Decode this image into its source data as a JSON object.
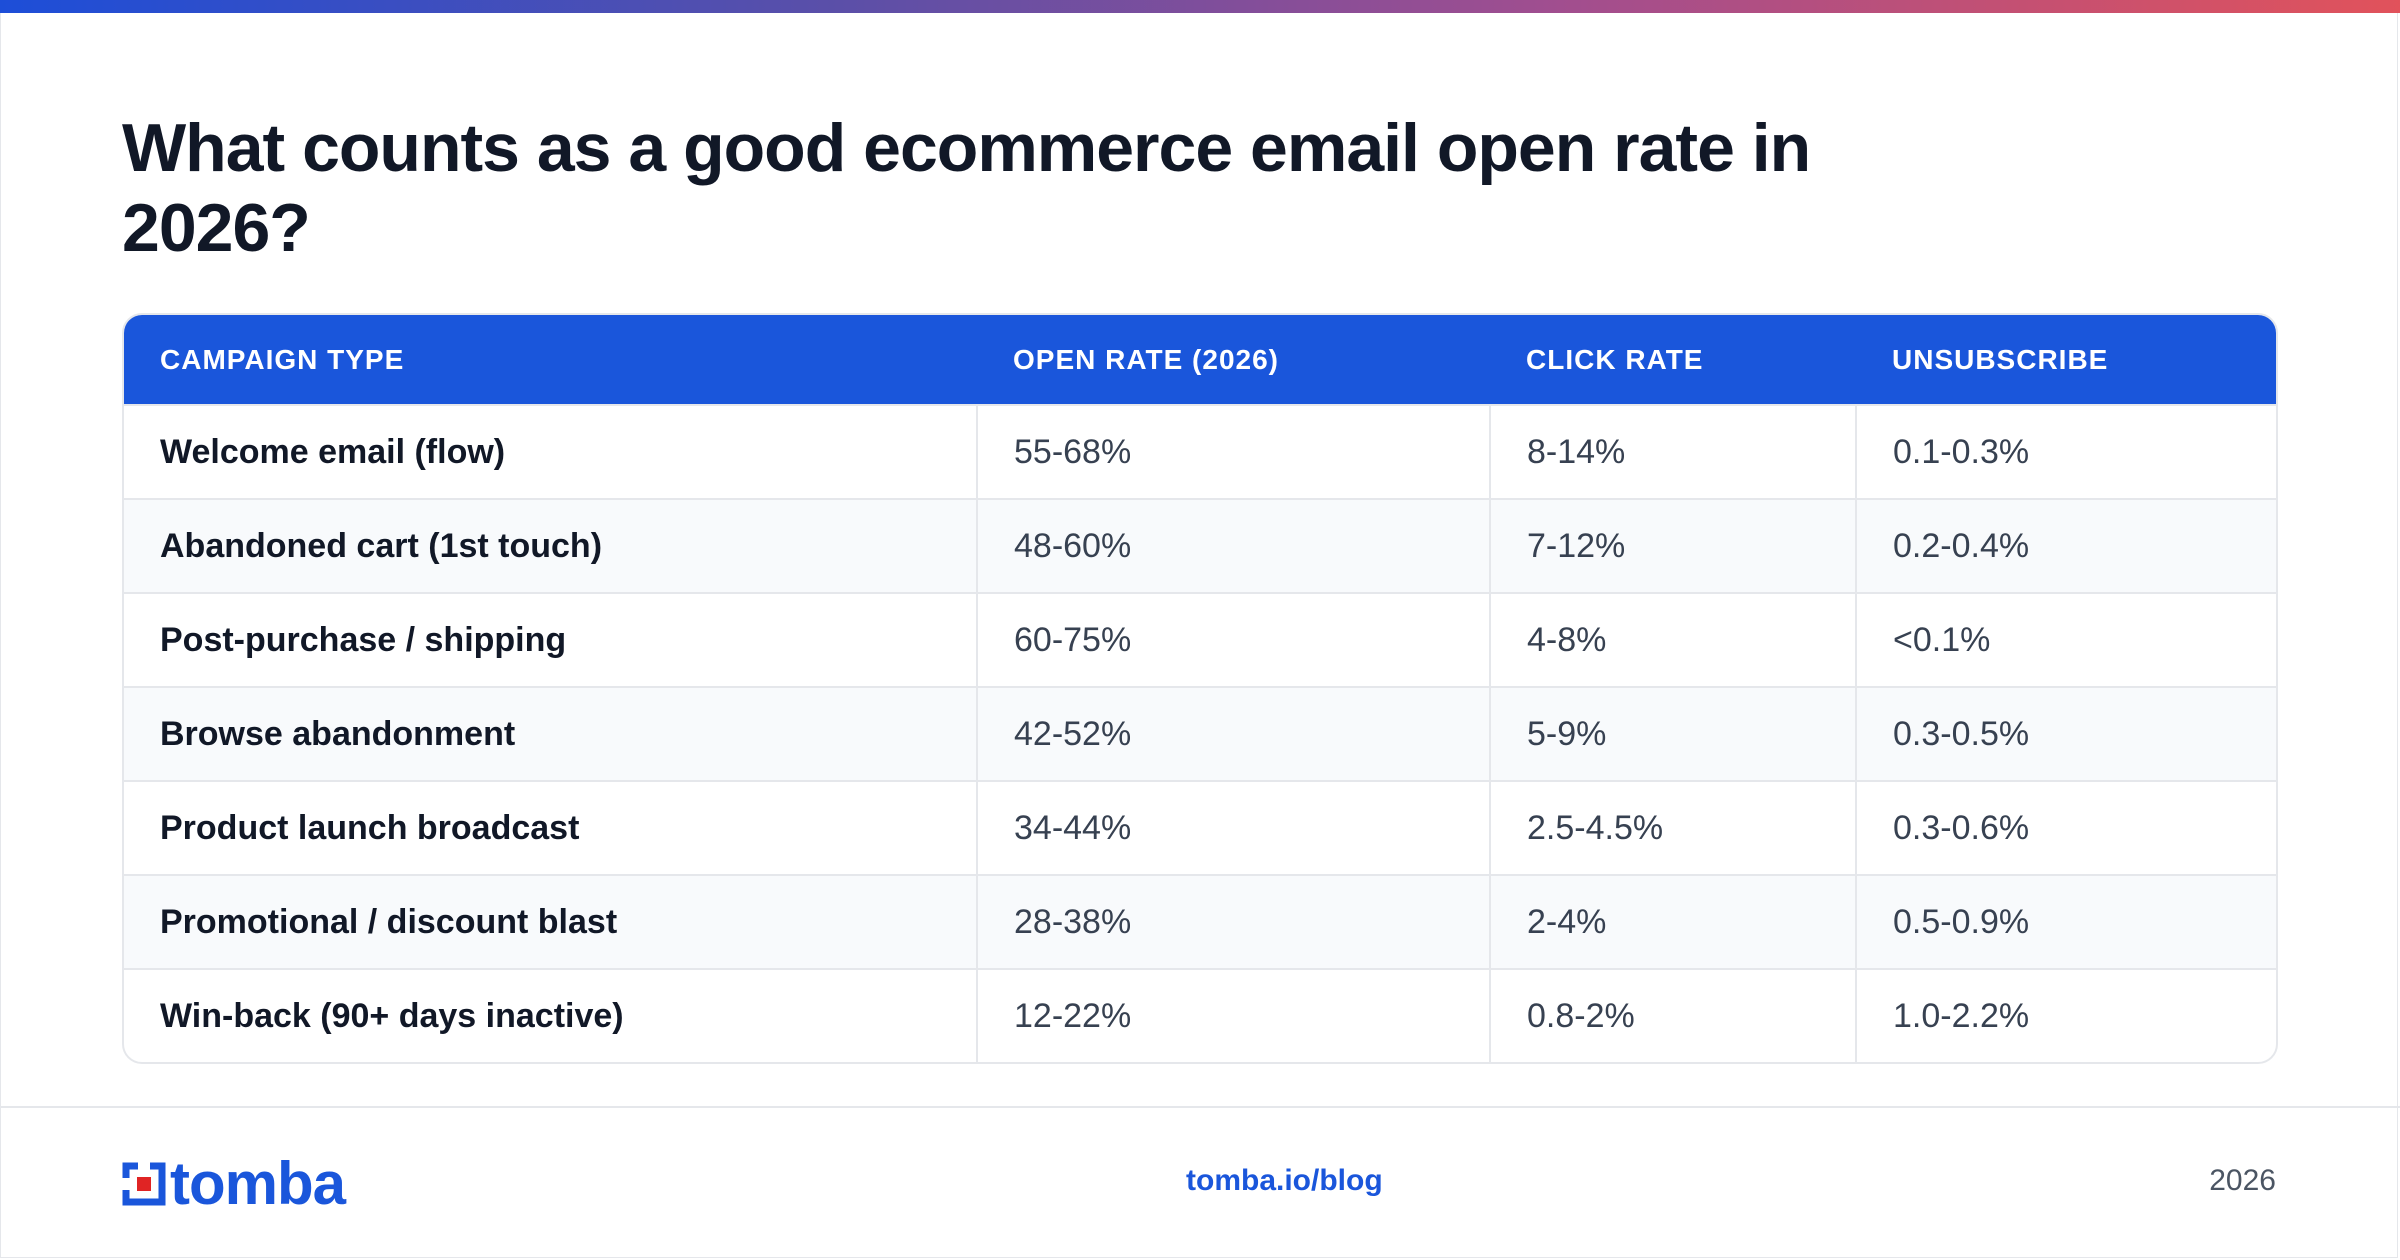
{
  "title": "What counts as a good ecommerce email open rate in 2026?",
  "table": {
    "headers": [
      "CAMPAIGN TYPE",
      "OPEN RATE (2026)",
      "CLICK RATE",
      "UNSUBSCRIBE"
    ],
    "rows": [
      [
        "Welcome email (flow)",
        "55-68%",
        "8-14%",
        "0.1-0.3%"
      ],
      [
        "Abandoned cart (1st touch)",
        "48-60%",
        "7-12%",
        "0.2-0.4%"
      ],
      [
        "Post-purchase / shipping",
        "60-75%",
        "4-8%",
        "<0.1%"
      ],
      [
        "Browse abandonment",
        "42-52%",
        "5-9%",
        "0.3-0.5%"
      ],
      [
        "Product launch broadcast",
        "34-44%",
        "2.5-4.5%",
        "0.3-0.6%"
      ],
      [
        "Promotional / discount blast",
        "28-38%",
        "2-4%",
        "0.5-0.9%"
      ],
      [
        "Win-back (90+ days inactive)",
        "12-22%",
        "0.8-2%",
        "1.0-2.2%"
      ]
    ]
  },
  "footer": {
    "logo_text": "tomba",
    "link": "tomba.io/blog",
    "year": "2026"
  },
  "colors": {
    "brand_blue": "#1a56db",
    "logo_red": "#e02424",
    "gradient_start": "#1d4ed8",
    "gradient_end": "#e1525b"
  }
}
